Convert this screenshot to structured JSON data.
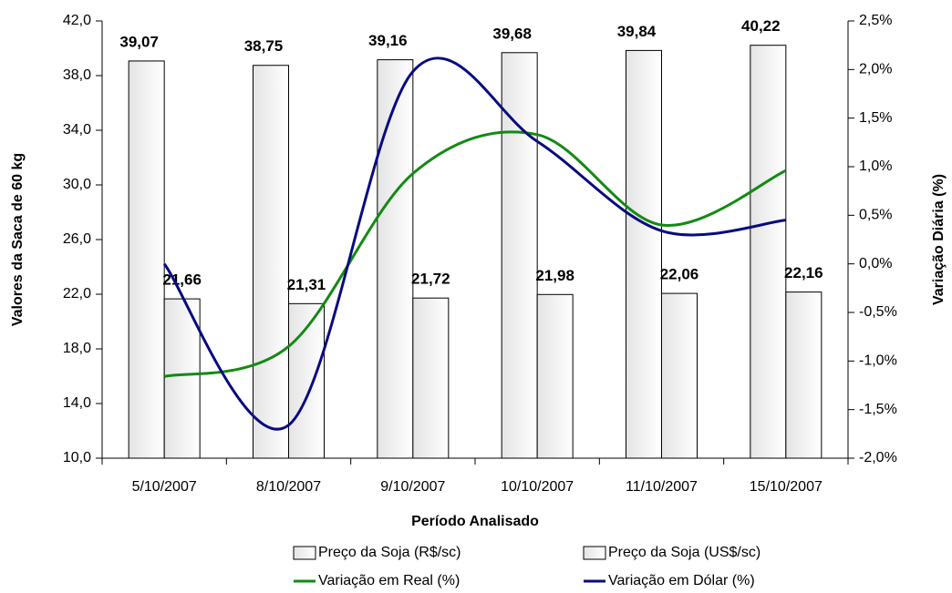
{
  "chart_data": {
    "type": "bar-line",
    "categories": [
      "5/10/2007",
      "8/10/2007",
      "9/10/2007",
      "10/10/2007",
      "11/10/2007",
      "15/10/2007"
    ],
    "series": [
      {
        "name": "Preço da Soja (R$/sc)",
        "type": "bar",
        "color": "#e4e4e4",
        "values": [
          39.07,
          38.75,
          39.16,
          39.68,
          39.84,
          40.22
        ],
        "value_labels": [
          "39,07",
          "38,75",
          "39,16",
          "39,68",
          "39,84",
          "40,22"
        ]
      },
      {
        "name": "Preço da Soja (US$/sc)",
        "type": "bar",
        "color": "#e4e4e4",
        "values": [
          21.66,
          21.31,
          21.72,
          21.98,
          22.06,
          22.16
        ],
        "value_labels": [
          "21,66",
          "21,31",
          "21,72",
          "21,98",
          "22,06",
          "22,16"
        ]
      },
      {
        "name": "Variação em Real (%)",
        "type": "line",
        "axis": "y2",
        "color": "#138a13",
        "values": [
          -1.16,
          -0.85,
          0.93,
          1.33,
          0.4,
          0.96
        ]
      },
      {
        "name": "Variação em Dólar (%)",
        "type": "line",
        "axis": "y2",
        "color": "#0a0a80",
        "values": [
          0.0,
          -1.66,
          1.98,
          1.26,
          0.34,
          0.45
        ]
      }
    ],
    "x_label": "Período Analisado",
    "y_label": "Valores da Saca de 60 kg",
    "y2_label": "Variação Diária (%)",
    "ylim": [
      10,
      42
    ],
    "yticks": [
      {
        "value": 10,
        "label": "10,0"
      },
      {
        "value": 14,
        "label": "14,0"
      },
      {
        "value": 18,
        "label": "18,0"
      },
      {
        "value": 22,
        "label": "22,0"
      },
      {
        "value": 26,
        "label": "26,0"
      },
      {
        "value": 30,
        "label": "30,0"
      },
      {
        "value": 34,
        "label": "34,0"
      },
      {
        "value": 38,
        "label": "38,0"
      },
      {
        "value": 42,
        "label": "42,0"
      }
    ],
    "y2lim": [
      -2.0,
      2.5
    ],
    "y2ticks": [
      {
        "value": -2.0,
        "label": "-2,0%"
      },
      {
        "value": -1.5,
        "label": "-1,5%"
      },
      {
        "value": -1.0,
        "label": "-1,0%"
      },
      {
        "value": -0.5,
        "label": "-0,5%"
      },
      {
        "value": 0.0,
        "label": "0,0%"
      },
      {
        "value": 0.5,
        "label": "0,5%"
      },
      {
        "value": 1.0,
        "label": "1,0%"
      },
      {
        "value": 1.5,
        "label": "1,5%"
      },
      {
        "value": 2.0,
        "label": "2,0%"
      },
      {
        "value": 2.5,
        "label": "2,5%"
      }
    ],
    "legend": "bottom"
  }
}
